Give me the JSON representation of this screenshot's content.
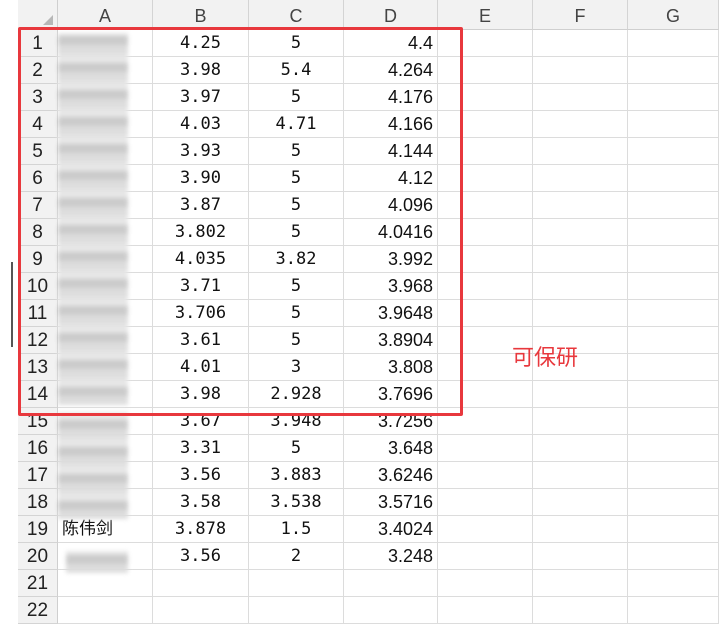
{
  "columns": [
    "A",
    "B",
    "C",
    "D",
    "E",
    "F",
    "G"
  ],
  "rows": [
    {
      "num": "1",
      "a": "",
      "b": "4.25",
      "c": "5",
      "d": "4.4"
    },
    {
      "num": "2",
      "a": "",
      "b": "3.98",
      "c": "5.4",
      "d": "4.264"
    },
    {
      "num": "3",
      "a": "",
      "b": "3.97",
      "c": "5",
      "d": "4.176"
    },
    {
      "num": "4",
      "a": "",
      "b": "4.03",
      "c": "4.71",
      "d": "4.166"
    },
    {
      "num": "5",
      "a": "",
      "b": "3.93",
      "c": "5",
      "d": "4.144"
    },
    {
      "num": "6",
      "a": "",
      "b": "3.90",
      "c": "5",
      "d": "4.12"
    },
    {
      "num": "7",
      "a": "",
      "b": "3.87",
      "c": "5",
      "d": "4.096"
    },
    {
      "num": "8",
      "a": "",
      "b": "3.802",
      "c": "5",
      "d": "4.0416"
    },
    {
      "num": "9",
      "a": "",
      "b": "4.035",
      "c": "3.82",
      "d": "3.992"
    },
    {
      "num": "10",
      "a": "",
      "b": "3.71",
      "c": "5",
      "d": "3.968"
    },
    {
      "num": "11",
      "a": "",
      "b": "3.706",
      "c": "5",
      "d": "3.9648"
    },
    {
      "num": "12",
      "a": "",
      "b": "3.61",
      "c": "5",
      "d": "3.8904"
    },
    {
      "num": "13",
      "a": "",
      "b": "4.01",
      "c": "3",
      "d": "3.808"
    },
    {
      "num": "14",
      "a": "",
      "b": "3.98",
      "c": "2.928",
      "d": "3.7696"
    },
    {
      "num": "15",
      "a": "",
      "b": "3.67",
      "c": "3.948",
      "d": "3.7256"
    },
    {
      "num": "16",
      "a": "",
      "b": "3.31",
      "c": "5",
      "d": "3.648"
    },
    {
      "num": "17",
      "a": "",
      "b": "3.56",
      "c": "3.883",
      "d": "3.6246"
    },
    {
      "num": "18",
      "a": "",
      "b": "3.58",
      "c": "3.538",
      "d": "3.5716"
    },
    {
      "num": "19",
      "a": "陈伟剑",
      "b": "3.878",
      "c": "1.5",
      "d": "3.4024"
    },
    {
      "num": "20",
      "a": "",
      "b": "3.56",
      "c": "2",
      "d": "3.248"
    },
    {
      "num": "21",
      "a": "",
      "b": "",
      "c": "",
      "d": ""
    },
    {
      "num": "22",
      "a": "",
      "b": "",
      "c": "",
      "d": ""
    }
  ],
  "annotation": {
    "text": "可保研",
    "color": "#e8383d"
  },
  "colors": {
    "header_bg": "#f2f2f2",
    "highlight": "#e8383d"
  }
}
